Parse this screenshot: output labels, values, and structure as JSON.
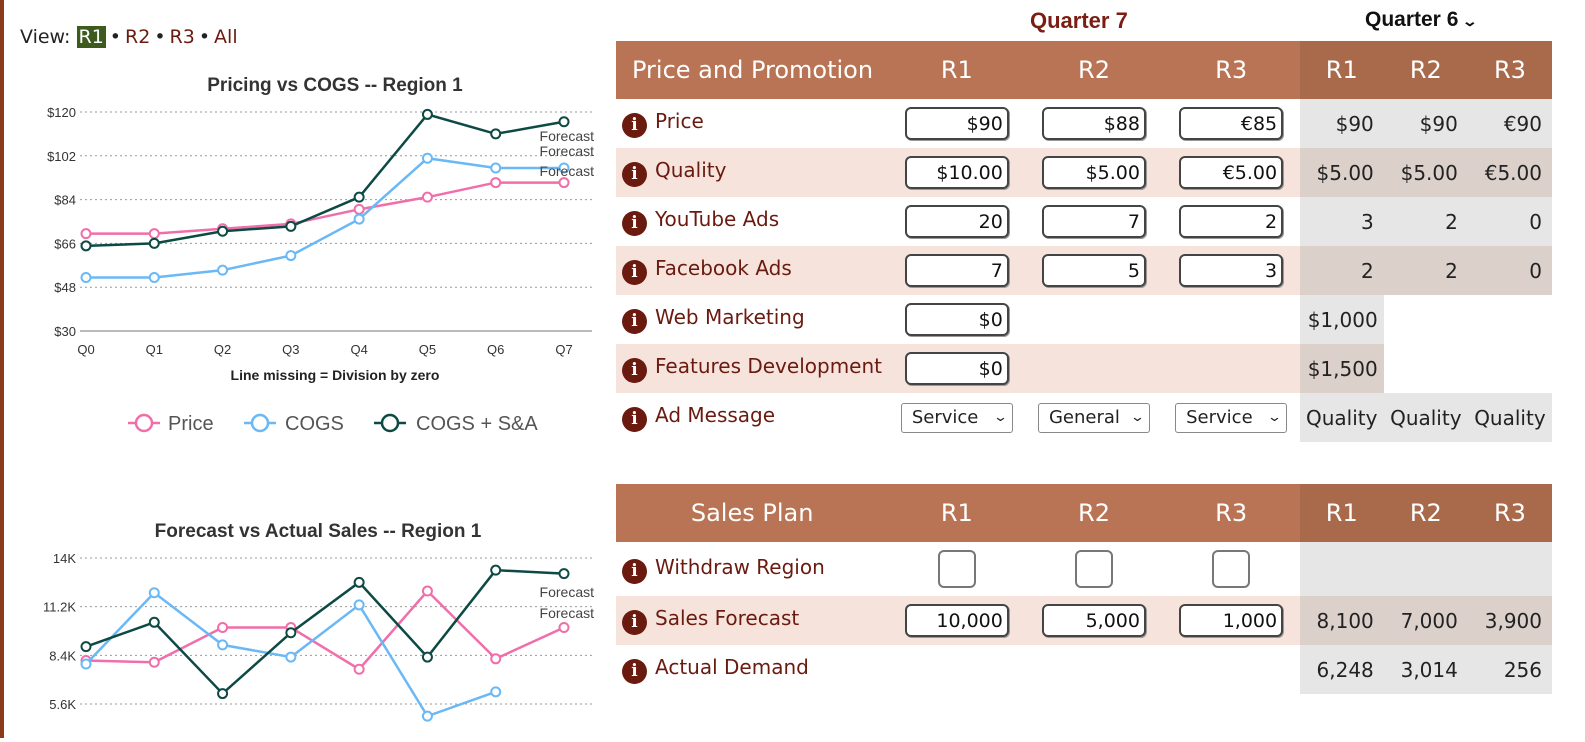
{
  "view": {
    "label": "View:",
    "options": [
      "R1",
      "R2",
      "R3",
      "All"
    ],
    "selected": "R1"
  },
  "header": {
    "current_quarter": "Quarter 7",
    "previous_quarter": "Quarter 6"
  },
  "chart_data": [
    {
      "type": "line",
      "title": "Pricing vs COGS -- Region 1",
      "xlabel": "Line missing = Division by zero",
      "categories": [
        "Q0",
        "Q1",
        "Q2",
        "Q3",
        "Q4",
        "Q5",
        "Q6",
        "Q7"
      ],
      "ylim": [
        30,
        120
      ],
      "yticks": [
        "$120",
        "$102",
        "$84",
        "$66",
        "$48",
        "$30"
      ],
      "series": [
        {
          "name": "Price",
          "color": "#f06eaa",
          "values": [
            70,
            70,
            72,
            74,
            80,
            85,
            91,
            91
          ]
        },
        {
          "name": "COGS",
          "color": "#6ab8f5",
          "values": [
            52,
            52,
            55,
            61,
            76,
            101,
            97,
            97
          ]
        },
        {
          "name": "COGS + S&A",
          "color": "#0d4a44",
          "values": [
            65,
            66,
            71,
            73,
            85,
            119,
            111,
            116
          ]
        }
      ],
      "annotations": [
        "Forecast",
        "Forecast",
        "Forecast"
      ]
    },
    {
      "type": "line",
      "title": "Forecast vs Actual Sales -- Region 1",
      "categories": [
        "Q0",
        "Q1",
        "Q2",
        "Q3",
        "Q4",
        "Q5",
        "Q6",
        "Q7"
      ],
      "ylim": [
        5600,
        14000
      ],
      "yticks": [
        "14K",
        "11.2K",
        "8.4K",
        "5.6K"
      ],
      "series": [
        {
          "name": "Price",
          "color": "#f06eaa",
          "values": [
            8100,
            8000,
            10000,
            10000,
            7600,
            12100,
            8200,
            10000
          ]
        },
        {
          "name": "COGS",
          "color": "#6ab8f5",
          "values": [
            7900,
            12000,
            9000,
            8300,
            11300,
            4900,
            6300,
            null
          ]
        },
        {
          "name": "COGS + S&A",
          "color": "#0d4a44",
          "values": [
            8900,
            10300,
            6200,
            9700,
            12600,
            8300,
            13300,
            13100
          ]
        }
      ],
      "annotations": [
        "Forecast",
        "Forecast"
      ]
    }
  ],
  "price_promotion": {
    "title": "Price and Promotion",
    "columns": [
      "R1",
      "R2",
      "R3",
      "R1",
      "R2",
      "R3"
    ],
    "rows": [
      {
        "label": "Price",
        "inputs": [
          "$90",
          "$88",
          "€85"
        ],
        "prev": [
          "$90",
          "$90",
          "€90"
        ]
      },
      {
        "label": "Quality",
        "inputs": [
          "$10.00",
          "$5.00",
          "€5.00"
        ],
        "prev": [
          "$5.00",
          "$5.00",
          "€5.00"
        ]
      },
      {
        "label": "YouTube Ads",
        "inputs": [
          "20",
          "7",
          "2"
        ],
        "prev": [
          "3",
          "2",
          "0"
        ]
      },
      {
        "label": "Facebook Ads",
        "inputs": [
          "7",
          "5",
          "3"
        ],
        "prev": [
          "2",
          "2",
          "0"
        ]
      },
      {
        "label": "Web Marketing",
        "input": "$0",
        "prev": "$1,000"
      },
      {
        "label": "Features Development",
        "input": "$0",
        "prev": "$1,500"
      },
      {
        "label": "Ad Message",
        "selects": [
          "Service",
          "General",
          "Service"
        ],
        "prev": [
          "Quality",
          "Quality",
          "Quality"
        ]
      }
    ]
  },
  "sales_plan": {
    "title": "Sales Plan",
    "columns": [
      "R1",
      "R2",
      "R3",
      "R1",
      "R2",
      "R3"
    ],
    "rows": [
      {
        "label": "Withdraw Region"
      },
      {
        "label": "Sales Forecast",
        "inputs": [
          "10,000",
          "5,000",
          "1,000"
        ],
        "prev": [
          "8,100",
          "7,000",
          "3,900"
        ]
      },
      {
        "label": "Actual Demand",
        "prev": [
          "6,248",
          "3,014",
          "256"
        ]
      }
    ]
  },
  "colors": {
    "accent": "#b87454",
    "label": "#6b1a10",
    "price": "#f06eaa",
    "cogs": "#6ab8f5",
    "cogs_sa": "#0d4a44"
  }
}
